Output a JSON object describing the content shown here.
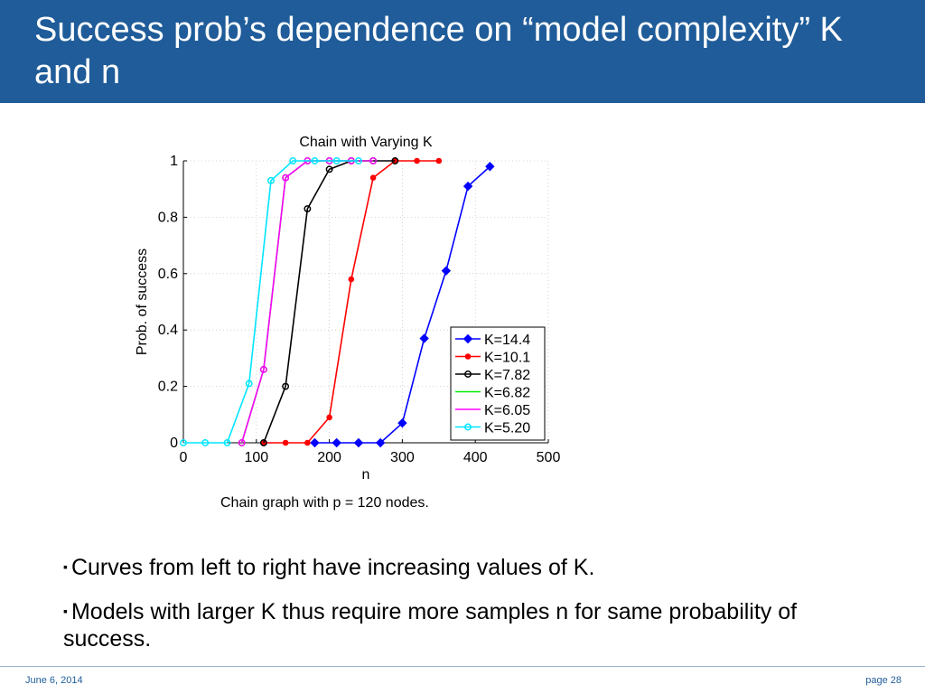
{
  "slide": {
    "title": "Success prob’s dependence on “model complexity” K and n",
    "caption": "Chain graph  with p = 120 nodes.",
    "bullets": [
      "Curves from left to right have increasing values of K.",
      "Models with larger K thus require more samples n for same probability of success."
    ],
    "bullet_marker": "▪",
    "footer_date": "June 6, 2014",
    "footer_page": "page 28",
    "colors": {
      "title_bar": "#1f5c99",
      "footer_text": "#1f5c99"
    }
  },
  "chart_data": {
    "type": "line",
    "title": "Chain with Varying K",
    "xlabel": "n",
    "ylabel": "Prob. of success",
    "xlim": [
      0,
      500
    ],
    "ylim": [
      0,
      1
    ],
    "xticks": [
      0,
      100,
      200,
      300,
      400,
      500
    ],
    "yticks": [
      0,
      0.2,
      0.4,
      0.6,
      0.8,
      1
    ],
    "grid": true,
    "legend_position": "bottom-right",
    "series": [
      {
        "name": "K=14.4",
        "color": "#0000ff",
        "marker": "diamond",
        "x": [
          180,
          210,
          240,
          270,
          300,
          330,
          360,
          390,
          420
        ],
        "y": [
          0,
          0,
          0,
          0,
          0.07,
          0.37,
          0.61,
          0.91,
          0.98
        ]
      },
      {
        "name": "K=10.1",
        "color": "#ff0000",
        "marker": "dot",
        "x": [
          110,
          140,
          170,
          200,
          230,
          260,
          290,
          320,
          350
        ],
        "y": [
          0,
          0,
          0,
          0.09,
          0.58,
          0.94,
          1,
          1,
          1
        ]
      },
      {
        "name": "K=7.82",
        "color": "#000000",
        "marker": "circle",
        "x": [
          110,
          140,
          170,
          200,
          230,
          260,
          290
        ],
        "y": [
          0,
          0.2,
          0.83,
          0.97,
          1,
          1,
          1
        ]
      },
      {
        "name": "K=6.82",
        "color": "#00ee00",
        "marker": "circle",
        "x": [
          80,
          110,
          140,
          170,
          200,
          230,
          260
        ],
        "y": [
          0,
          0.26,
          0.94,
          1,
          1,
          1,
          1
        ]
      },
      {
        "name": "K=6.05",
        "color": "#ff00ff",
        "marker": "circle",
        "x": [
          80,
          110,
          140,
          170,
          200,
          230,
          260
        ],
        "y": [
          0,
          0.26,
          0.94,
          1,
          1,
          1,
          1
        ]
      },
      {
        "name": "K=5.20",
        "color": "#00e5ff",
        "marker": "circle",
        "x": [
          0,
          30,
          60,
          90,
          120,
          150,
          180,
          210,
          240
        ],
        "y": [
          0,
          0,
          0,
          0.21,
          0.93,
          1,
          1,
          1,
          1
        ]
      }
    ]
  }
}
